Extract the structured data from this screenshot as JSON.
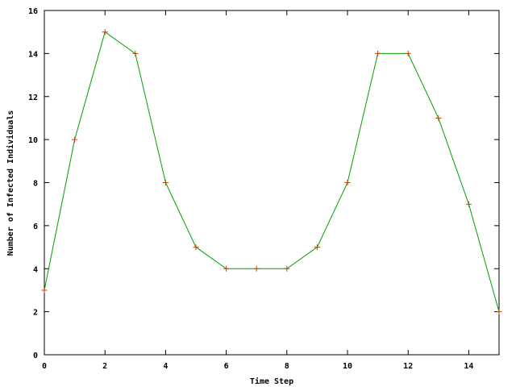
{
  "chart_data": {
    "type": "line",
    "title": "",
    "xlabel": "Time Step",
    "ylabel": "Number of Infected Individuals",
    "xlim": [
      0,
      15
    ],
    "ylim": [
      0,
      16
    ],
    "xticks": [
      "0",
      "2",
      "4",
      "6",
      "8",
      "10",
      "12",
      "14"
    ],
    "yticks": [
      "0",
      "2",
      "4",
      "6",
      "8",
      "10",
      "12",
      "14",
      "16"
    ],
    "grid": false,
    "legend": "none",
    "series": [
      {
        "line_color": "#00a000",
        "marker_color": "#c04000",
        "marker": "plus",
        "x": [
          0,
          1,
          2,
          3,
          4,
          5,
          6,
          7,
          8,
          9,
          10,
          11,
          12,
          13,
          14,
          15
        ],
        "y": [
          3,
          10,
          15,
          14,
          8,
          5,
          4,
          4,
          4,
          5,
          8,
          14,
          14,
          11,
          7,
          2
        ]
      }
    ]
  }
}
